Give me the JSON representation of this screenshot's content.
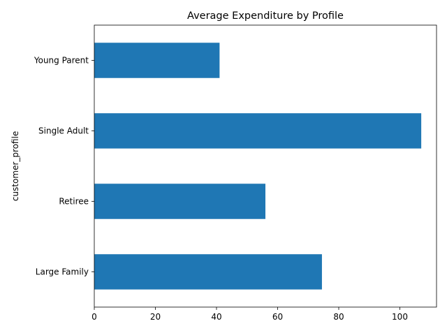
{
  "chart_data": {
    "type": "bar",
    "orientation": "horizontal",
    "title": "Average Expenditure by Profile",
    "xlabel": "",
    "ylabel": "customer_profile",
    "categories": [
      "Large Family",
      "Retiree",
      "Single Adult",
      "Young Parent"
    ],
    "values": [
      74.5,
      56.0,
      107.0,
      41.0
    ],
    "xlim": [
      0,
      112
    ],
    "xticks": [
      0,
      20,
      40,
      60,
      80,
      100
    ],
    "grid": false,
    "legend": "none",
    "bar_color": "#1f77b4"
  }
}
